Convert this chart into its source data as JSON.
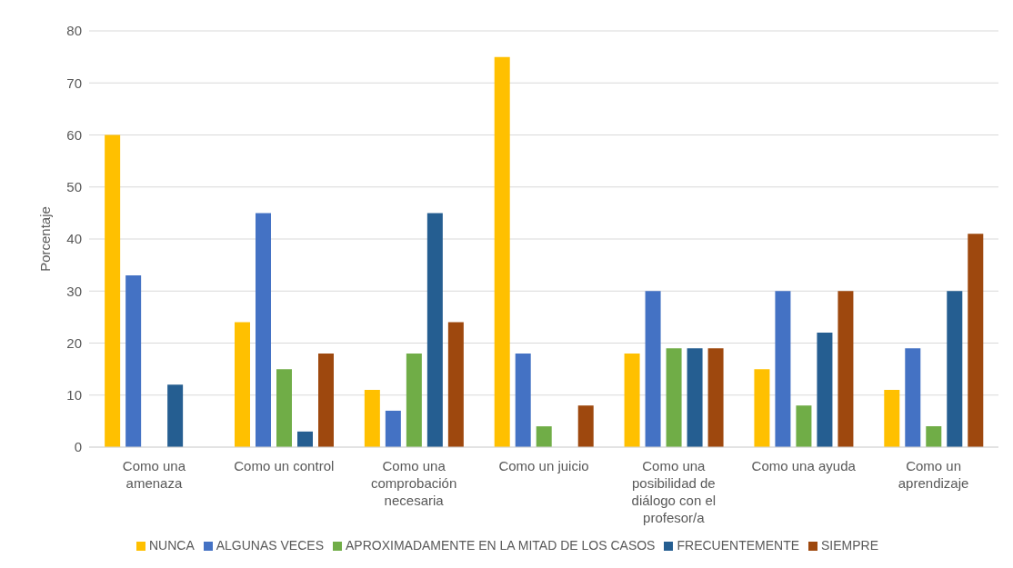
{
  "chart_data": {
    "type": "bar",
    "ylabel": "Porcentaje",
    "categories": [
      "Como una amenaza",
      "Como un control",
      "Como una comprobación necesaria",
      "Como un juicio",
      "Como una posibilidad de diálogo con el profesor/a",
      "Como una ayuda",
      "Como un aprendizaje"
    ],
    "series": [
      {
        "name": "NUNCA",
        "color": "#ffc000",
        "values": [
          60,
          24,
          11,
          75,
          18,
          15,
          11
        ]
      },
      {
        "name": "ALGUNAS VECES",
        "color": "#4472c4",
        "values": [
          33,
          45,
          7,
          18,
          30,
          30,
          19
        ]
      },
      {
        "name": "APROXIMADAMENTE EN LA MITAD DE LOS CASOS",
        "color": "#70ad47",
        "values": [
          0,
          15,
          18,
          4,
          19,
          8,
          4
        ]
      },
      {
        "name": "FRECUENTEMENTE",
        "color": "#255e91",
        "values": [
          12,
          3,
          45,
          0,
          19,
          22,
          30
        ]
      },
      {
        "name": "SIEMPRE",
        "color": "#9e480e",
        "values": [
          0,
          18,
          24,
          8,
          19,
          30,
          41
        ]
      }
    ],
    "ylim": [
      0,
      80
    ],
    "yticks": [
      0,
      10,
      20,
      30,
      40,
      50,
      60,
      70,
      80
    ],
    "grid": "y",
    "legend": "bottom"
  }
}
